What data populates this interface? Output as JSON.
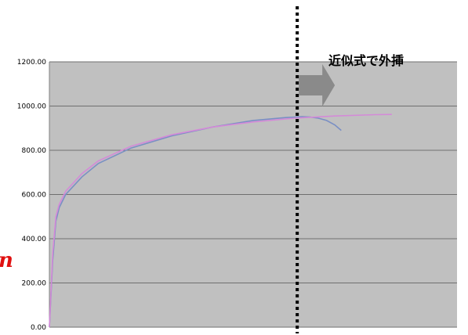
{
  "chart_data": {
    "type": "line",
    "title": "",
    "xlabel": "",
    "ylabel": "",
    "ylim": [
      0,
      1200
    ],
    "yticks": [
      "0.00",
      "200.00",
      "400.00",
      "600.00",
      "800.00",
      "1000.00",
      "1200.00"
    ],
    "xlim": [
      0,
      0.25
    ],
    "grid": true,
    "series": [
      {
        "color": "#7a8fc4",
        "points": [
          [
            0,
            0
          ],
          [
            0.002,
            300
          ],
          [
            0.004,
            480
          ],
          [
            0.006,
            540
          ],
          [
            0.01,
            600
          ],
          [
            0.02,
            680
          ],
          [
            0.03,
            740
          ],
          [
            0.05,
            810
          ],
          [
            0.075,
            865
          ],
          [
            0.1,
            905
          ],
          [
            0.125,
            935
          ],
          [
            0.145,
            948
          ],
          [
            0.155,
            952
          ],
          [
            0.16,
            950
          ],
          [
            0.165,
            945
          ],
          [
            0.17,
            935
          ],
          [
            0.175,
            915
          ],
          [
            0.179,
            890
          ]
        ]
      },
      {
        "color": "#d48ad8",
        "points": [
          [
            0,
            0
          ],
          [
            0.002,
            330
          ],
          [
            0.004,
            500
          ],
          [
            0.006,
            555
          ],
          [
            0.01,
            615
          ],
          [
            0.02,
            695
          ],
          [
            0.03,
            752
          ],
          [
            0.05,
            818
          ],
          [
            0.075,
            870
          ],
          [
            0.1,
            905
          ],
          [
            0.125,
            928
          ],
          [
            0.15,
            945
          ],
          [
            0.175,
            955
          ],
          [
            0.2,
            961
          ],
          [
            0.21,
            962
          ]
        ]
      }
    ],
    "annotation": "近似式で外挿",
    "divider_x": 0.152
  },
  "colors": {
    "plot_bg": "#c0c0c0",
    "grid": "#6f6f6f",
    "arrow": "#8a8a8a",
    "divider": "#000000",
    "side_glyph": "#e01010"
  },
  "side_glyph": "ɴ"
}
